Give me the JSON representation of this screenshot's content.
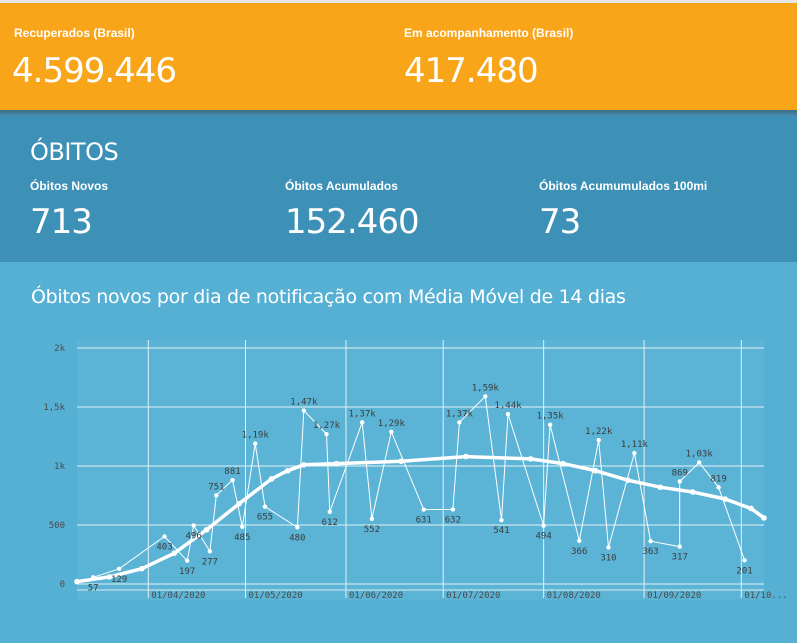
{
  "top": {
    "recuperados_label": "Recuperados (Brasil)",
    "recuperados_value": "4.599.446",
    "acompanhamento_label": "Em acompanhamento (Brasil)",
    "acompanhamento_value": "417.480"
  },
  "obitos": {
    "title": "ÓBITOS",
    "novos_label": "Óbitos Novos",
    "novos_value": "713",
    "acumulados_label": "Óbitos Acumulados",
    "acumulados_value": "152.460",
    "por100mi_label": "Óbitos Acumumulados 100mi",
    "por100mi_value": "73"
  },
  "colors": {
    "top_bar": "#f9a51a",
    "card": "#3d91b7",
    "chart_panel": "#55b0d4",
    "plot_background": "#ffffff",
    "series": "#ffffff"
  },
  "chart_data": {
    "type": "line",
    "title": "Óbitos novos por dia de notificação com Média Móvel de 14 dias",
    "xlabel": "",
    "ylabel": "",
    "ylim": [
      0,
      2000
    ],
    "y_ticks": [
      {
        "value": 0,
        "label": "0"
      },
      {
        "value": 500,
        "label": "500"
      },
      {
        "value": 1000,
        "label": "1k"
      },
      {
        "value": 1500,
        "label": "1,5k"
      },
      {
        "value": 2000,
        "label": "2k"
      }
    ],
    "x_ticks": [
      {
        "day": 22,
        "label": "01/04/2020"
      },
      {
        "day": 52,
        "label": "01/05/2020"
      },
      {
        "day": 83,
        "label": "01/06/2020"
      },
      {
        "day": 113,
        "label": "01/07/2020"
      },
      {
        "day": 144,
        "label": "01/08/2020"
      },
      {
        "day": 175,
        "label": "01/09/2020"
      },
      {
        "day": 205,
        "label": "01/10..."
      }
    ],
    "x_range_days": [
      0,
      212
    ],
    "grid": true,
    "data_labels": [
      {
        "day": 5,
        "value": 57,
        "label": "57"
      },
      {
        "day": 13,
        "value": 129,
        "label": "129"
      },
      {
        "day": 27,
        "value": 403,
        "label": "403"
      },
      {
        "day": 34,
        "value": 197,
        "label": "197"
      },
      {
        "day": 36,
        "value": 496,
        "label": "496"
      },
      {
        "day": 41,
        "value": 277,
        "label": "277"
      },
      {
        "day": 43,
        "value": 751,
        "label": "751"
      },
      {
        "day": 48,
        "value": 881,
        "label": "881"
      },
      {
        "day": 51,
        "value": 485,
        "label": "485"
      },
      {
        "day": 55,
        "value": 1190,
        "label": "1,19k"
      },
      {
        "day": 58,
        "value": 655,
        "label": "655"
      },
      {
        "day": 68,
        "value": 480,
        "label": "480"
      },
      {
        "day": 70,
        "value": 1470,
        "label": "1,47k"
      },
      {
        "day": 77,
        "value": 1270,
        "label": "1,27k"
      },
      {
        "day": 78,
        "value": 612,
        "label": "612"
      },
      {
        "day": 88,
        "value": 1370,
        "label": "1,37k"
      },
      {
        "day": 91,
        "value": 552,
        "label": "552"
      },
      {
        "day": 97,
        "value": 1290,
        "label": "1,29k"
      },
      {
        "day": 107,
        "value": 631,
        "label": "631"
      },
      {
        "day": 116,
        "value": 632,
        "label": "632"
      },
      {
        "day": 118,
        "value": 1370,
        "label": "1,37k"
      },
      {
        "day": 126,
        "value": 1590,
        "label": "1,59k"
      },
      {
        "day": 131,
        "value": 541,
        "label": "541"
      },
      {
        "day": 133,
        "value": 1440,
        "label": "1,44k"
      },
      {
        "day": 144,
        "value": 494,
        "label": "494"
      },
      {
        "day": 146,
        "value": 1350,
        "label": "1,35k"
      },
      {
        "day": 155,
        "value": 366,
        "label": "366"
      },
      {
        "day": 161,
        "value": 1220,
        "label": "1,22k"
      },
      {
        "day": 164,
        "value": 310,
        "label": "310"
      },
      {
        "day": 172,
        "value": 1110,
        "label": "1,11k"
      },
      {
        "day": 177,
        "value": 363,
        "label": "363"
      },
      {
        "day": 186,
        "value": 869,
        "label": "869"
      },
      {
        "day": 186,
        "value": 317,
        "label": "317"
      },
      {
        "day": 192,
        "value": 1030,
        "label": "1,03k"
      },
      {
        "day": 198,
        "value": 819,
        "label": "819"
      },
      {
        "day": 206,
        "value": 201,
        "label": "201"
      }
    ],
    "moving_average_keypoints": [
      {
        "day": 0,
        "value": 20
      },
      {
        "day": 10,
        "value": 60
      },
      {
        "day": 20,
        "value": 130
      },
      {
        "day": 30,
        "value": 260
      },
      {
        "day": 40,
        "value": 460
      },
      {
        "day": 50,
        "value": 680
      },
      {
        "day": 60,
        "value": 890
      },
      {
        "day": 65,
        "value": 960
      },
      {
        "day": 70,
        "value": 1010
      },
      {
        "day": 80,
        "value": 1020
      },
      {
        "day": 100,
        "value": 1040
      },
      {
        "day": 120,
        "value": 1080
      },
      {
        "day": 140,
        "value": 1060
      },
      {
        "day": 150,
        "value": 1020
      },
      {
        "day": 160,
        "value": 960
      },
      {
        "day": 170,
        "value": 880
      },
      {
        "day": 180,
        "value": 820
      },
      {
        "day": 190,
        "value": 780
      },
      {
        "day": 200,
        "value": 720
      },
      {
        "day": 208,
        "value": 640
      },
      {
        "day": 212,
        "value": 560
      }
    ]
  }
}
